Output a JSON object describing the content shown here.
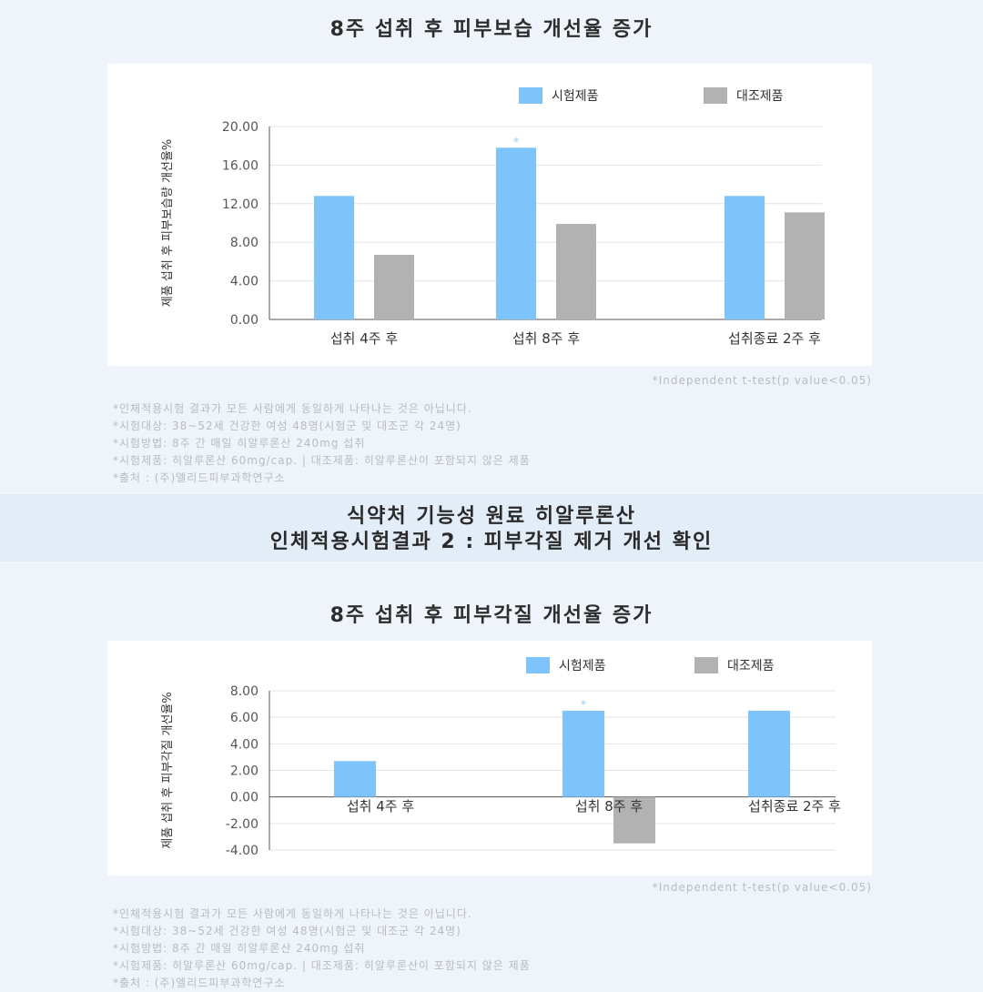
{
  "colors": {
    "test": "#7cc4fb",
    "control": "#b2b2b2",
    "grid": "#e3e3e3",
    "axis": "#555555"
  },
  "chart_data": [
    {
      "type": "bar",
      "title": "8주 섭취 후 피부보습 개선율 증가",
      "ylabel": "제품 섭취 후 피부보습량 개선율%",
      "categories": [
        "섭취 4주 후",
        "섭취 8주 후",
        "섭취종료 2주 후"
      ],
      "series": [
        {
          "name": "시험제품",
          "values": [
            12.8,
            17.8,
            12.8
          ]
        },
        {
          "name": "대조제품",
          "values": [
            6.7,
            9.9,
            11.1
          ]
        }
      ],
      "ylim": [
        0,
        20
      ],
      "yticks": [
        "0.00",
        "4.00",
        "8.00",
        "12.00",
        "16.00",
        "20.00"
      ],
      "significance": [
        {
          "category": 1,
          "series": 0,
          "label": "*"
        }
      ],
      "grid": true,
      "legend": "top-right",
      "footnote": "*Independent t-test(p value<0.05)",
      "notes": [
        "*인체적용시험 결과가 모든 사람에게 동일하게 나타나는 것은 아닙니다.",
        "*시험대상: 38~52세 건강한 여성 48명(시험군 및 대조군 각 24명)",
        "*시험방법: 8주 간 매일 히알루론산 240mg 섭취",
        "*시험제품: 히알루론산 60mg/cap. | 대조제품: 히알루론산이 포함되지 않은 제품",
        "*출처 : (주)엘리드피부과학연구소"
      ]
    },
    {
      "type": "bar",
      "title": "8주 섭취 후 피부각질 개선율 증가",
      "ylabel": "제품 섭취 후 피부각질 개선율%",
      "categories": [
        "섭취 4주 후",
        "섭취 8주 후",
        "섭취종료 2주 후"
      ],
      "series": [
        {
          "name": "시험제품",
          "values": [
            2.7,
            6.5,
            6.5
          ]
        },
        {
          "name": "대조제품",
          "values": [
            0,
            -3.5,
            0
          ]
        }
      ],
      "ylim": [
        -4,
        8
      ],
      "yticks": [
        "-4.00",
        "-2.00",
        "0.00",
        "2.00",
        "4.00",
        "6.00",
        "8.00"
      ],
      "significance": [
        {
          "category": 1,
          "series": 0,
          "label": "*"
        }
      ],
      "grid": true,
      "legend": "top-right",
      "footnote": "*Independent t-test(p value<0.05)",
      "notes": [
        "*인체적용시험 결과가 모든 사람에게 동일하게 나타나는 것은 아닙니다.",
        "*시험대상: 38~52세 건강한 여성 48명(시험군 및 대조군 각 24명)",
        "*시험방법: 8주 간 매일 히알루론산 240mg 섭취",
        "*시험제품: 히알루론산 60mg/cap. | 대조제품: 히알루론산이 포함되지 않은 제품",
        "*출처 : (주)엘리드피부과학연구소"
      ]
    }
  ],
  "section_heading": {
    "line1": "식약처 기능성 원료 히알루론산",
    "line2": "인체적용시험결과 2 : 피부각질 제거 개선 확인"
  }
}
